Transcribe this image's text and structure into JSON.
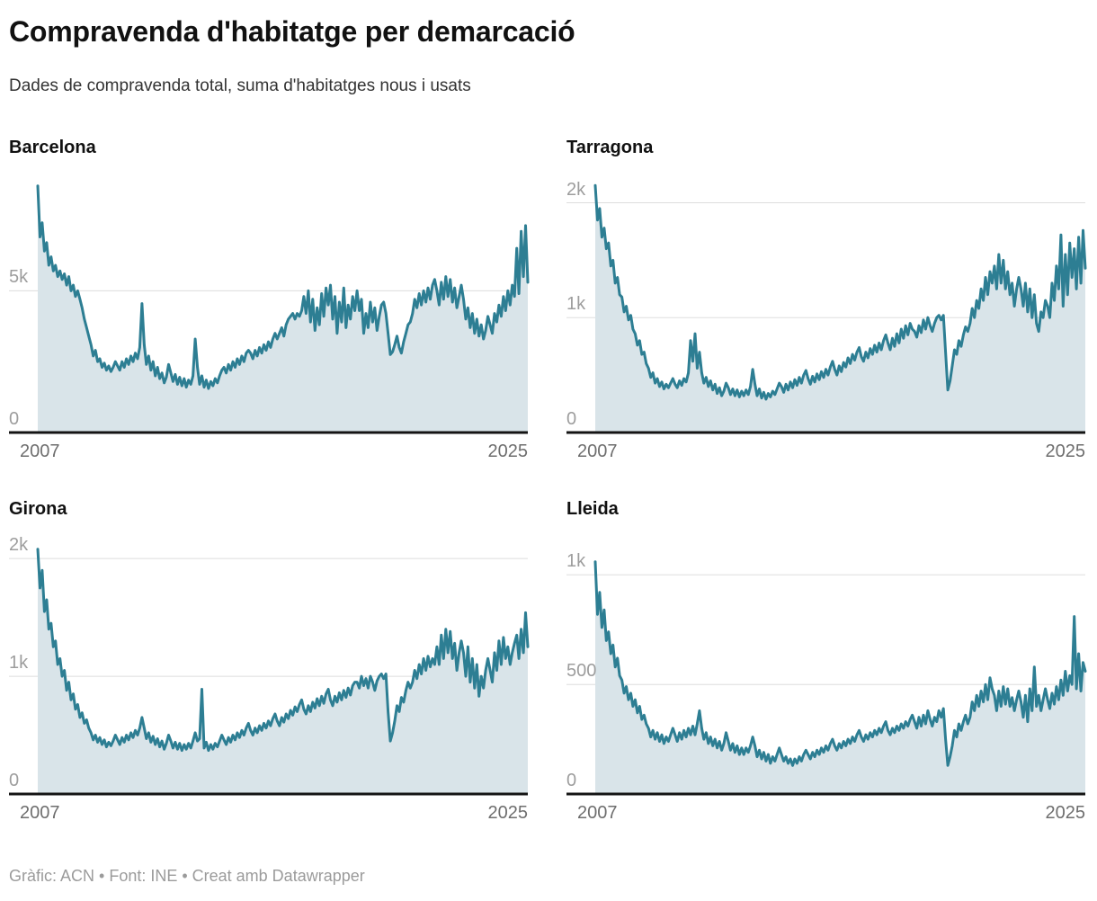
{
  "header": {
    "title": "Compravenda d'habitatge per demarcació",
    "subtitle": "Dades de compravenda total, suma d'habitatges nous i usats"
  },
  "footer": {
    "credit": "Gràfic: ACN • Font: INE • Creat amb Datawrapper"
  },
  "colors": {
    "line": "#2d7e93",
    "fill": "#d9e4e9",
    "grid": "#dddddd",
    "axis": "#141414",
    "ytick_label": "#9d9d9d",
    "xtick_label": "#6e6e6e"
  },
  "chart_data": [
    {
      "type": "area",
      "title": "Barcelona",
      "x_unit": "monthly",
      "x_start": "2007",
      "x_end": "2025",
      "ylim": [
        0,
        9200
      ],
      "yticks": [
        {
          "value": 5000,
          "label": "5k"
        },
        {
          "value": 0,
          "label": "0"
        }
      ],
      "grid": "on",
      "values": [
        8700,
        6900,
        7400,
        6400,
        6700,
        5900,
        6200,
        5700,
        5900,
        5500,
        5700,
        5400,
        5600,
        5200,
        5500,
        5000,
        5200,
        4800,
        5000,
        4700,
        4400,
        4000,
        3700,
        3400,
        3100,
        2700,
        2900,
        2500,
        2600,
        2300,
        2450,
        2200,
        2350,
        2150,
        2300,
        2500,
        2350,
        2200,
        2500,
        2300,
        2600,
        2400,
        2700,
        2500,
        2800,
        2600,
        3000,
        4550,
        3100,
        2400,
        2700,
        2200,
        2500,
        2000,
        2300,
        1900,
        2100,
        1750,
        1950,
        2400,
        2100,
        1800,
        2050,
        1700,
        1950,
        1650,
        1900,
        1600,
        1850,
        1700,
        2000,
        3300,
        2300,
        1700,
        2000,
        1600,
        1850,
        1550,
        1800,
        1650,
        1900,
        1750,
        2000,
        2200,
        2300,
        2100,
        2400,
        2200,
        2500,
        2300,
        2600,
        2400,
        2700,
        2500,
        2800,
        2900,
        2800,
        2600,
        2900,
        2700,
        3000,
        2800,
        3100,
        2900,
        3200,
        3000,
        3300,
        3500,
        3300,
        3500,
        3700,
        3400,
        3800,
        4000,
        4100,
        4200,
        4000,
        4200,
        4100,
        4300,
        4800,
        4200,
        5000,
        3900,
        4700,
        3600,
        4400,
        3800,
        4900,
        4100,
        5100,
        4500,
        5200,
        4000,
        4800,
        3500,
        4600,
        3900,
        5100,
        3700,
        4500,
        4000,
        4800,
        4300,
        5000,
        4300,
        4700,
        3500,
        4200,
        3700,
        4600,
        3900,
        4400,
        3600,
        4100,
        4500,
        4600,
        4200,
        3500,
        2750,
        2850,
        3100,
        3400,
        3000,
        2800,
        3200,
        3500,
        3800,
        3900,
        4200,
        4700,
        4400,
        4900,
        4500,
        5000,
        4600,
        5100,
        4700,
        5200,
        5400,
        5000,
        4500,
        5300,
        4700,
        5500,
        4800,
        5400,
        4600,
        5100,
        4400,
        4800,
        5200,
        4700,
        4000,
        4400,
        3700,
        4200,
        3500,
        4000,
        3400,
        3800,
        3300,
        3600,
        4100,
        3800,
        3500,
        4200,
        3900,
        4500,
        4100,
        4800,
        4300,
        5000,
        4500,
        5200,
        4800,
        6500,
        4900,
        7100,
        5500,
        7300,
        5300
      ]
    },
    {
      "type": "area",
      "title": "Tarragona",
      "x_unit": "monthly",
      "x_start": "2007",
      "x_end": "2025",
      "ylim": [
        0,
        2270
      ],
      "yticks": [
        {
          "value": 2000,
          "label": "2k"
        },
        {
          "value": 1000,
          "label": "1k"
        },
        {
          "value": 0,
          "label": "0"
        }
      ],
      "grid": "on",
      "values": [
        2150,
        1850,
        1950,
        1700,
        1780,
        1600,
        1650,
        1450,
        1500,
        1300,
        1350,
        1200,
        1180,
        1050,
        1100,
        980,
        1020,
        900,
        860,
        760,
        800,
        680,
        700,
        600,
        560,
        480,
        520,
        430,
        470,
        400,
        440,
        380,
        420,
        390,
        430,
        470,
        420,
        390,
        450,
        410,
        470,
        440,
        520,
        800,
        620,
        860,
        560,
        700,
        520,
        430,
        480,
        400,
        450,
        370,
        420,
        340,
        390,
        320,
        360,
        430,
        390,
        330,
        380,
        320,
        370,
        310,
        360,
        320,
        370,
        330,
        400,
        550,
        420,
        320,
        380,
        300,
        350,
        290,
        340,
        310,
        360,
        330,
        380,
        430,
        400,
        350,
        420,
        370,
        440,
        390,
        460,
        410,
        480,
        430,
        500,
        540,
        470,
        420,
        490,
        440,
        510,
        460,
        530,
        480,
        550,
        500,
        570,
        620,
        550,
        500,
        580,
        530,
        610,
        570,
        650,
        600,
        680,
        630,
        700,
        740,
        660,
        620,
        700,
        650,
        730,
        680,
        760,
        700,
        780,
        720,
        800,
        850,
        780,
        720,
        820,
        750,
        860,
        780,
        900,
        820,
        930,
        850,
        950,
        900,
        880,
        830,
        930,
        870,
        980,
        900,
        1000,
        930,
        880,
        950,
        1000,
        1020,
        980,
        1020,
        700,
        370,
        450,
        580,
        720,
        680,
        800,
        750,
        850,
        920,
        880,
        950,
        1080,
        1000,
        1150,
        1080,
        1250,
        1150,
        1350,
        1200,
        1400,
        1300,
        1450,
        1250,
        1550,
        1300,
        1500,
        1250,
        1400,
        1200,
        1300,
        1100,
        1250,
        1350,
        1250,
        1100,
        1300,
        1050,
        1250,
        1000,
        1200,
        950,
        880,
        1050,
        1000,
        1150,
        1100,
        1000,
        1300,
        1150,
        1450,
        1250,
        1720,
        1100,
        1550,
        1200,
        1650,
        1350,
        1600,
        1250,
        1700,
        1300,
        1760,
        1430
      ]
    },
    {
      "type": "area",
      "title": "Girona",
      "x_unit": "monthly",
      "x_start": "2007",
      "x_end": "2025",
      "ylim": [
        0,
        2215
      ],
      "yticks": [
        {
          "value": 2000,
          "label": "2k"
        },
        {
          "value": 1000,
          "label": "1k"
        },
        {
          "value": 0,
          "label": "0"
        }
      ],
      "grid": "on",
      "values": [
        2080,
        1750,
        1900,
        1550,
        1650,
        1400,
        1450,
        1250,
        1300,
        1100,
        1150,
        1000,
        1050,
        880,
        950,
        800,
        850,
        720,
        760,
        650,
        690,
        600,
        630,
        560,
        520,
        460,
        500,
        440,
        480,
        420,
        460,
        400,
        440,
        410,
        450,
        500,
        460,
        420,
        480,
        440,
        500,
        460,
        520,
        480,
        540,
        500,
        560,
        650,
        560,
        470,
        520,
        440,
        490,
        420,
        470,
        400,
        450,
        380,
        430,
        500,
        450,
        390,
        440,
        380,
        430,
        370,
        420,
        380,
        430,
        390,
        450,
        520,
        450,
        470,
        890,
        390,
        440,
        370,
        420,
        380,
        430,
        400,
        450,
        500,
        460,
        420,
        480,
        440,
        500,
        460,
        520,
        480,
        540,
        500,
        560,
        600,
        540,
        500,
        560,
        520,
        580,
        540,
        600,
        560,
        620,
        580,
        640,
        680,
        620,
        580,
        650,
        610,
        680,
        640,
        710,
        670,
        740,
        700,
        760,
        800,
        720,
        680,
        750,
        700,
        780,
        730,
        810,
        750,
        830,
        770,
        850,
        890,
        800,
        750,
        830,
        780,
        860,
        800,
        880,
        820,
        900,
        840,
        920,
        950,
        950,
        900,
        1000,
        920,
        980,
        900,
        1000,
        950,
        880,
        960,
        1000,
        1020,
        980,
        1020,
        700,
        450,
        520,
        620,
        750,
        700,
        820,
        780,
        880,
        950,
        900,
        950,
        1050,
        980,
        1100,
        1020,
        1150,
        1050,
        1170,
        1080,
        1150,
        1100,
        1250,
        1100,
        1350,
        1150,
        1400,
        1200,
        1380,
        1150,
        1280,
        1050,
        1200,
        1300,
        1200,
        1000,
        1250,
        950,
        1150,
        900,
        1100,
        830,
        1000,
        900,
        1050,
        1150,
        1050,
        950,
        1200,
        1050,
        1300,
        1100,
        1330,
        1150,
        1250,
        1100,
        1200,
        1280,
        1350,
        1150,
        1400,
        1200,
        1540,
        1250
      ]
    },
    {
      "type": "area",
      "title": "Lleida",
      "x_unit": "monthly",
      "x_start": "2007",
      "x_end": "2025",
      "ylim": [
        0,
        1190
      ],
      "yticks": [
        {
          "value": 1000,
          "label": "1k"
        },
        {
          "value": 500,
          "label": "500"
        },
        {
          "value": 0,
          "label": "0"
        }
      ],
      "grid": "on",
      "values": [
        1060,
        820,
        920,
        760,
        840,
        700,
        740,
        640,
        680,
        580,
        620,
        540,
        520,
        460,
        490,
        430,
        460,
        400,
        430,
        370,
        400,
        340,
        360,
        320,
        300,
        260,
        290,
        250,
        280,
        240,
        270,
        230,
        260,
        240,
        270,
        300,
        270,
        240,
        280,
        250,
        290,
        260,
        300,
        270,
        310,
        270,
        320,
        380,
        300,
        250,
        280,
        230,
        260,
        220,
        250,
        210,
        240,
        200,
        230,
        280,
        240,
        200,
        230,
        190,
        220,
        180,
        210,
        180,
        210,
        190,
        220,
        260,
        220,
        170,
        200,
        160,
        190,
        150,
        180,
        140,
        170,
        150,
        180,
        210,
        180,
        150,
        170,
        140,
        160,
        130,
        160,
        140,
        170,
        150,
        180,
        200,
        180,
        160,
        190,
        170,
        200,
        180,
        210,
        190,
        220,
        200,
        230,
        250,
        220,
        200,
        230,
        210,
        240,
        220,
        250,
        230,
        260,
        240,
        270,
        290,
        260,
        240,
        270,
        250,
        280,
        260,
        290,
        270,
        300,
        280,
        310,
        330,
        290,
        270,
        300,
        280,
        310,
        290,
        320,
        300,
        330,
        310,
        340,
        360,
        330,
        300,
        350,
        310,
        360,
        320,
        380,
        340,
        310,
        350,
        330,
        380,
        350,
        390,
        250,
        130,
        170,
        220,
        290,
        260,
        320,
        290,
        330,
        360,
        320,
        350,
        420,
        380,
        450,
        400,
        470,
        420,
        500,
        430,
        530,
        480,
        450,
        380,
        470,
        400,
        490,
        410,
        480,
        400,
        440,
        380,
        430,
        470,
        420,
        350,
        450,
        330,
        480,
        380,
        580,
        400,
        450,
        380,
        430,
        480,
        430,
        390,
        460,
        410,
        490,
        430,
        520,
        450,
        560,
        470,
        540,
        500,
        810,
        480,
        640,
        470,
        600,
        560
      ]
    }
  ]
}
